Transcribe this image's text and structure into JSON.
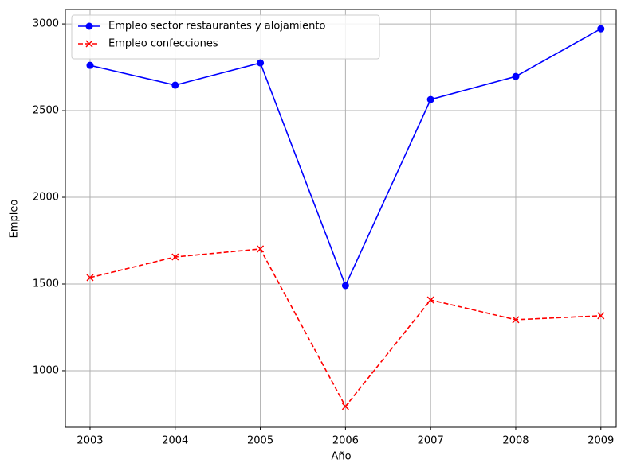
{
  "chart_data": {
    "type": "line",
    "xlabel": "Año",
    "ylabel": "Empleo",
    "x": [
      2003,
      2004,
      2005,
      2006,
      2007,
      2008,
      2009
    ],
    "series": [
      {
        "name": "Empleo sector restaurantes y alojamiento",
        "color": "#0000ff",
        "linestyle": "solid",
        "marker": "circle",
        "values": [
          2761,
          2647,
          2775,
          1491,
          2564,
          2697,
          2972
        ]
      },
      {
        "name": "Empleo confecciones",
        "color": "#ff0000",
        "linestyle": "dashed",
        "marker": "x",
        "values": [
          1537,
          1656,
          1702,
          794,
          1408,
          1294,
          1317
        ]
      }
    ],
    "xlim": [
      2002.71,
      2009.18
    ],
    "xticks": [
      2003,
      2004,
      2005,
      2006,
      2007,
      2008,
      2009
    ],
    "ylim": [
      674,
      3083
    ],
    "yticks": [
      1000,
      1500,
      2000,
      2500,
      3000
    ],
    "grid": true,
    "legend": "upper left"
  }
}
